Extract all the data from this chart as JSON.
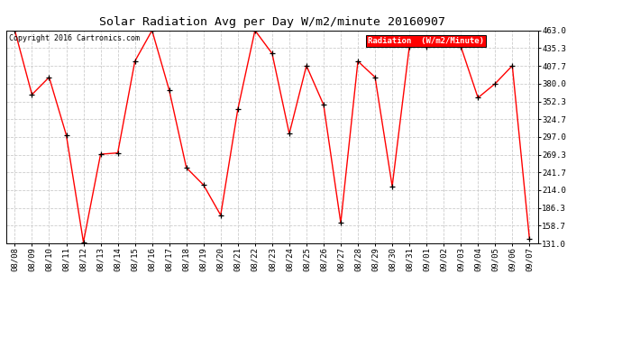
{
  "title": "Solar Radiation Avg per Day W/m2/minute 20160907",
  "copyright": "Copyright 2016 Cartronics.com",
  "legend_label": "Radiation  (W/m2/Minute)",
  "dates": [
    "08/08",
    "08/09",
    "08/10",
    "08/11",
    "08/12",
    "08/13",
    "08/14",
    "08/15",
    "08/16",
    "08/17",
    "08/18",
    "08/19",
    "08/20",
    "08/21",
    "08/22",
    "08/23",
    "08/24",
    "08/25",
    "08/26",
    "08/27",
    "08/28",
    "08/29",
    "08/30",
    "08/31",
    "09/01",
    "09/02",
    "09/03",
    "09/04",
    "09/05",
    "09/06",
    "09/07"
  ],
  "values": [
    463.0,
    363.0,
    390.0,
    300.0,
    133.0,
    270.0,
    272.0,
    415.0,
    463.0,
    370.0,
    249.0,
    222.0,
    175.0,
    340.0,
    463.0,
    427.0,
    302.0,
    408.0,
    347.0,
    163.0,
    415.0,
    390.0,
    220.0,
    438.0,
    438.0,
    447.0,
    438.0,
    358.0,
    380.0,
    408.0,
    138.0
  ],
  "y_ticks": [
    131.0,
    158.7,
    186.3,
    214.0,
    241.7,
    269.3,
    297.0,
    324.7,
    352.3,
    380.0,
    407.7,
    435.3,
    463.0
  ],
  "ylim": [
    131.0,
    463.0
  ],
  "line_color": "red",
  "marker": "+",
  "marker_color": "black",
  "bg_color": "#ffffff",
  "grid_color": "#cccccc",
  "legend_bg": "red",
  "legend_text_color": "white",
  "title_fontsize": 9.5,
  "tick_fontsize": 6.5,
  "copyright_fontsize": 6.0
}
